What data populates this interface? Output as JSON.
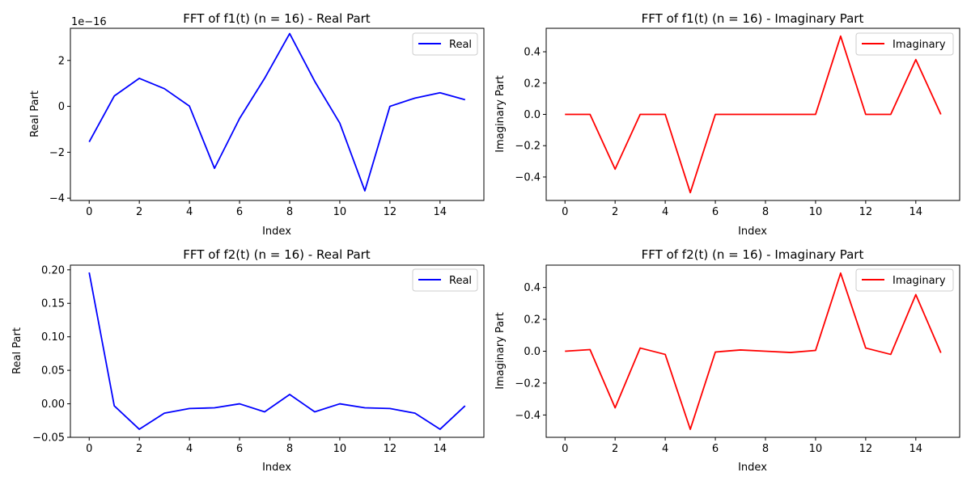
{
  "chart_data": [
    {
      "type": "line",
      "title": "FFT of f1(t) (n = 16) - Real Part",
      "xlabel": "Index",
      "ylabel": "Real Part",
      "xlim": [
        -0.75,
        15.75
      ],
      "ylim": [
        -4.1,
        3.4
      ],
      "x_ticks": [
        0,
        2,
        4,
        6,
        8,
        10,
        12,
        14
      ],
      "y_ticks": [
        -4,
        -2,
        0,
        2
      ],
      "y_offset_label": "1e−16",
      "legend": "top-right",
      "grid": false,
      "series": [
        {
          "name": "Real",
          "color": "#0000ff",
          "x": [
            0,
            1,
            2,
            3,
            4,
            5,
            6,
            7,
            8,
            9,
            10,
            11,
            12,
            13,
            14,
            15
          ],
          "values": [
            -1.55,
            0.45,
            1.22,
            0.77,
            0.01,
            -2.7,
            -0.53,
            1.22,
            3.17,
            1.09,
            -0.73,
            -3.68,
            0.0,
            0.36,
            0.59,
            0.29
          ]
        }
      ]
    },
    {
      "type": "line",
      "title": "FFT of f1(t) (n = 16) - Imaginary Part",
      "xlabel": "Index",
      "ylabel": "Imaginary Part",
      "xlim": [
        -0.75,
        15.75
      ],
      "ylim": [
        -0.55,
        0.55
      ],
      "x_ticks": [
        0,
        2,
        4,
        6,
        8,
        10,
        12,
        14
      ],
      "y_ticks": [
        -0.4,
        -0.2,
        0.0,
        0.2,
        0.4
      ],
      "legend": "top-right",
      "grid": false,
      "series": [
        {
          "name": "Imaginary",
          "color": "#ff0000",
          "x": [
            0,
            1,
            2,
            3,
            4,
            5,
            6,
            7,
            8,
            9,
            10,
            11,
            12,
            13,
            14,
            15
          ],
          "values": [
            0.0,
            0.0,
            -0.35,
            0.0,
            0.0,
            -0.5,
            0.0,
            0.0,
            0.0,
            0.0,
            0.0,
            0.5,
            0.0,
            0.0,
            0.35,
            0.0
          ]
        }
      ]
    },
    {
      "type": "line",
      "title": "FFT of f2(t) (n = 16) - Real Part",
      "xlabel": "Index",
      "ylabel": "Real Part",
      "xlim": [
        -0.75,
        15.75
      ],
      "ylim": [
        -0.05,
        0.207
      ],
      "x_ticks": [
        0,
        2,
        4,
        6,
        8,
        10,
        12,
        14
      ],
      "y_ticks": [
        -0.05,
        0.0,
        0.05,
        0.1,
        0.15,
        0.2
      ],
      "legend": "top-right",
      "grid": false,
      "series": [
        {
          "name": "Real",
          "color": "#0000ff",
          "x": [
            0,
            1,
            2,
            3,
            4,
            5,
            6,
            7,
            8,
            9,
            10,
            11,
            12,
            13,
            14,
            15
          ],
          "values": [
            0.196,
            -0.003,
            -0.038,
            -0.014,
            -0.007,
            -0.006,
            0.0,
            -0.012,
            0.014,
            -0.012,
            0.0,
            -0.006,
            -0.007,
            -0.014,
            -0.038,
            -0.003
          ]
        }
      ]
    },
    {
      "type": "line",
      "title": "FFT of f2(t) (n = 16) - Imaginary Part",
      "xlabel": "Index",
      "ylabel": "Imaginary Part",
      "xlim": [
        -0.75,
        15.75
      ],
      "ylim": [
        -0.54,
        0.54
      ],
      "x_ticks": [
        0,
        2,
        4,
        6,
        8,
        10,
        12,
        14
      ],
      "y_ticks": [
        -0.4,
        -0.2,
        0.0,
        0.2,
        0.4
      ],
      "legend": "top-right",
      "grid": false,
      "series": [
        {
          "name": "Imaginary",
          "color": "#ff0000",
          "x": [
            0,
            1,
            2,
            3,
            4,
            5,
            6,
            7,
            8,
            9,
            10,
            11,
            12,
            13,
            14,
            15
          ],
          "values": [
            0.0,
            0.01,
            -0.355,
            0.02,
            -0.02,
            -0.49,
            -0.005,
            0.008,
            0.0,
            -0.008,
            0.005,
            0.49,
            0.02,
            -0.02,
            0.355,
            -0.01
          ]
        }
      ]
    }
  ]
}
